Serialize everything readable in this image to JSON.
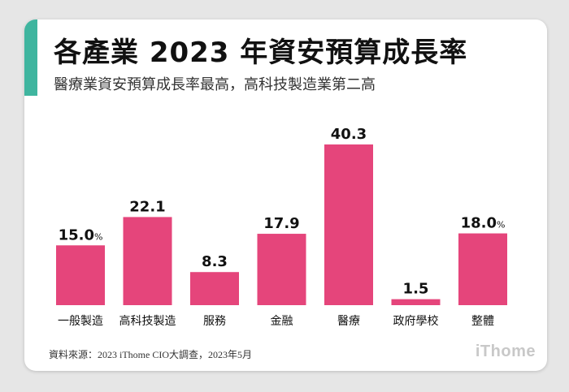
{
  "header": {
    "title": "各產業 2023 年資安預算成長率",
    "subtitle": "醫療業資安預算成長率最高，高科技製造業第二高"
  },
  "footer": {
    "source": "資料來源：2023 iThome CIO大調查，2023年5月",
    "logo": "iThome"
  },
  "colors": {
    "bar": "#e5457b",
    "accent": "#3fb59f"
  },
  "chart_data": {
    "type": "bar",
    "title": "各產業 2023 年資安預算成長率",
    "subtitle": "醫療業資安預算成長率最高，高科技製造業第二高",
    "unit": "%",
    "categories": [
      "一般製造",
      "高科技製造",
      "服務",
      "金融",
      "醫療",
      "政府學校",
      "整體"
    ],
    "values": [
      15.0,
      22.1,
      8.3,
      17.9,
      40.3,
      1.5,
      18.0
    ],
    "value_labels": [
      "15.0",
      "22.1",
      "8.3",
      "17.9",
      "40.3",
      "1.5",
      "18.0"
    ],
    "show_unit_on": [
      0,
      6
    ],
    "ylim": [
      0,
      40.3
    ],
    "grid": false,
    "legend": "none"
  }
}
